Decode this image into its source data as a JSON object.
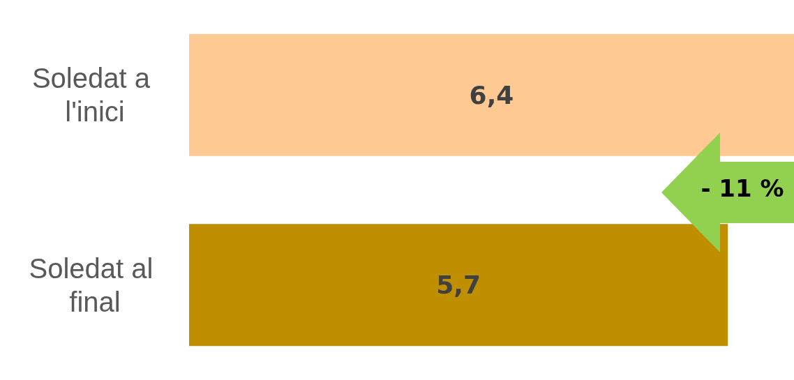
{
  "chart_data": {
    "type": "bar",
    "orientation": "horizontal",
    "categories": [
      "Soledat a l'inici",
      "Soledat al final"
    ],
    "values": [
      6.4,
      5.7
    ],
    "colors": [
      "#ffc993",
      "#bf8f00"
    ],
    "value_labels": [
      "6,4",
      "5,7"
    ],
    "annotations": [
      "- 11 %"
    ]
  }
}
